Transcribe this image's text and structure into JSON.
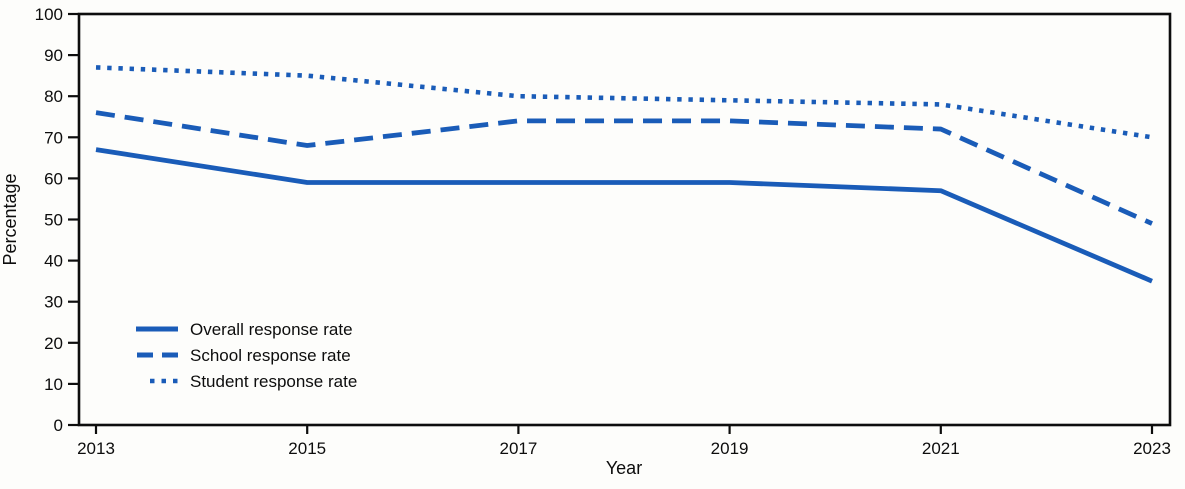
{
  "chart_data": {
    "type": "line",
    "title": "",
    "xlabel": "Year",
    "ylabel": "Percentage",
    "x": [
      2013,
      2015,
      2017,
      2019,
      2021,
      2023
    ],
    "x_tick_labels": [
      "2013",
      "2015",
      "2017",
      "2019",
      "2021",
      "2023"
    ],
    "y_ticks": [
      0,
      10,
      20,
      30,
      40,
      50,
      60,
      70,
      80,
      90,
      100
    ],
    "ylim": [
      0,
      100
    ],
    "grid": false,
    "legend_position": "inside-lower-left",
    "series": [
      {
        "name": "Overall response rate",
        "style": "solid",
        "values": [
          67,
          59,
          59,
          59,
          57,
          35
        ]
      },
      {
        "name": "School response rate",
        "style": "dashed",
        "values": [
          76,
          68,
          74,
          74,
          72,
          49
        ]
      },
      {
        "name": "Student response rate",
        "style": "dotted",
        "values": [
          87,
          85,
          80,
          79,
          78,
          70
        ]
      }
    ],
    "line_color": "#1a5cb8",
    "axis_color": "#0d0d0d"
  }
}
